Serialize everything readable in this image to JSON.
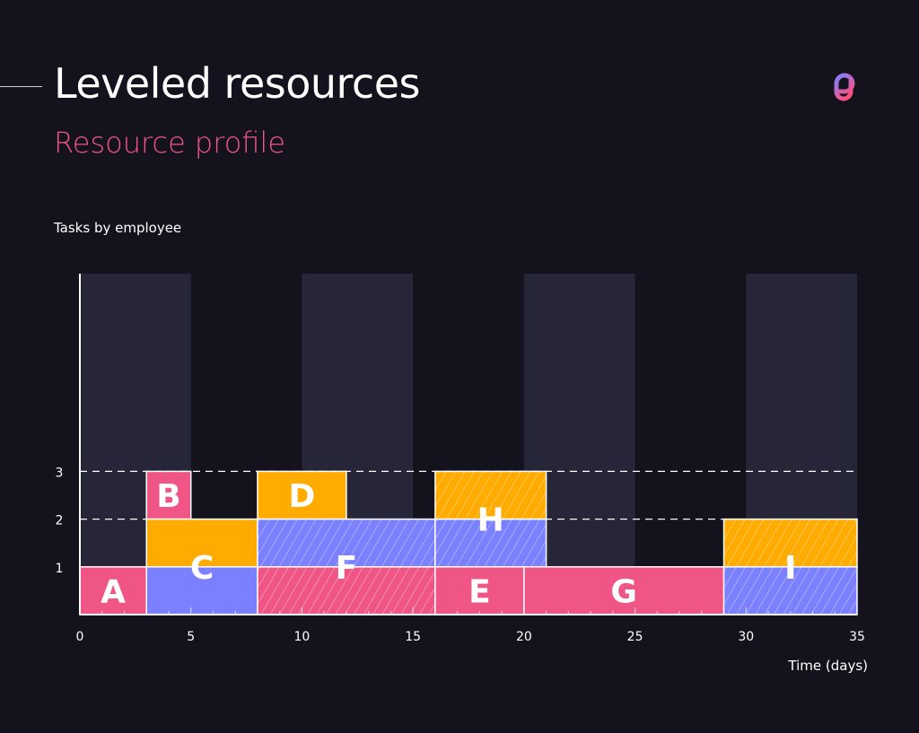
{
  "header": {
    "title": "Leveled resources",
    "subtitle": "Resource profile",
    "logo": "gradient-loop-logo"
  },
  "colors": {
    "background": "#13121d",
    "weekend_band": "#262638",
    "pink": "#ef5585",
    "orange": "#ffab00",
    "blue": "#7b80ff",
    "axis": "#ffffff"
  },
  "chart_data": {
    "type": "bar",
    "title": "Tasks by employee",
    "xlabel": "Time (days)",
    "ylabel": "",
    "xlim": [
      0,
      35
    ],
    "ylim": [
      0,
      3
    ],
    "xticks": [
      "0",
      "5",
      "10",
      "15",
      "20",
      "25",
      "30",
      "35"
    ],
    "yticks": [
      "1",
      "2",
      "3"
    ],
    "shaded_bands": [
      [
        0,
        5
      ],
      [
        10,
        15
      ],
      [
        20,
        25
      ],
      [
        30,
        35
      ]
    ],
    "dashed_lines": [
      {
        "y": 3,
        "x": [
          0,
          35
        ]
      },
      {
        "y": 2,
        "x": [
          0,
          29
        ]
      }
    ],
    "tasks": [
      {
        "label": "A",
        "start": 0,
        "end": 3,
        "segments": [
          {
            "y0": 0,
            "y1": 1,
            "color": "pink",
            "hatched": false
          }
        ]
      },
      {
        "label": "B",
        "start": 3,
        "end": 5,
        "segments": [
          {
            "y0": 2,
            "y1": 3,
            "color": "pink",
            "hatched": false
          }
        ]
      },
      {
        "label": "C",
        "start": 3,
        "end": 8,
        "segments": [
          {
            "y0": 0,
            "y1": 1,
            "color": "blue",
            "hatched": false
          },
          {
            "y0": 1,
            "y1": 2,
            "color": "orange",
            "hatched": false
          }
        ]
      },
      {
        "label": "D",
        "start": 8,
        "end": 12,
        "segments": [
          {
            "y0": 2,
            "y1": 3,
            "color": "orange",
            "hatched": false
          }
        ]
      },
      {
        "label": "F",
        "start": 8,
        "end": 16,
        "segments": [
          {
            "y0": 0,
            "y1": 1,
            "color": "pink",
            "hatched": true
          },
          {
            "y0": 1,
            "y1": 2,
            "color": "blue",
            "hatched": true
          }
        ]
      },
      {
        "label": "H",
        "start": 16,
        "end": 21,
        "segments": [
          {
            "y0": 1,
            "y1": 2,
            "color": "blue",
            "hatched": true
          },
          {
            "y0": 2,
            "y1": 3,
            "color": "orange",
            "hatched": true
          }
        ]
      },
      {
        "label": "E",
        "start": 16,
        "end": 20,
        "segments": [
          {
            "y0": 0,
            "y1": 1,
            "color": "pink",
            "hatched": false
          }
        ]
      },
      {
        "label": "G",
        "start": 20,
        "end": 29,
        "segments": [
          {
            "y0": 0,
            "y1": 1,
            "color": "pink",
            "hatched": false
          }
        ]
      },
      {
        "label": "I",
        "start": 29,
        "end": 35,
        "segments": [
          {
            "y0": 0,
            "y1": 1,
            "color": "blue",
            "hatched": true
          },
          {
            "y0": 1,
            "y1": 2,
            "color": "orange",
            "hatched": true
          }
        ]
      }
    ]
  }
}
